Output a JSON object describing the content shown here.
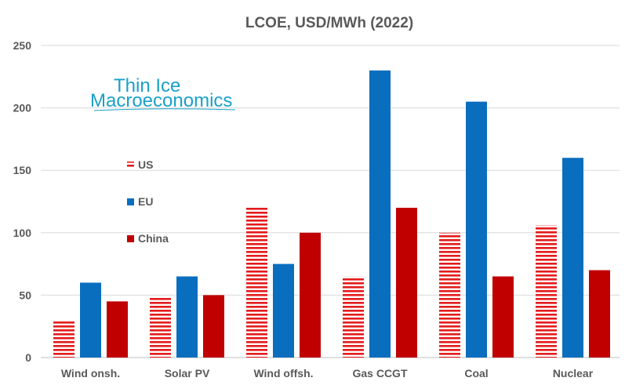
{
  "chart_data": {
    "type": "bar",
    "title": "LCOE, USD/MWh (2022)",
    "xlabel": "",
    "ylabel": "",
    "ylim": [
      0,
      250
    ],
    "yticks": [
      0,
      50,
      100,
      150,
      200,
      250
    ],
    "grid": true,
    "legend_position": "left-center",
    "categories": [
      "Wind onsh.",
      "Solar PV",
      "Wind offsh.",
      "Gas CCGT",
      "Coal",
      "Nuclear"
    ],
    "series": [
      {
        "name": "US",
        "values": [
          30,
          49,
          120,
          65,
          100,
          106
        ],
        "color": "#e41b1b",
        "pattern": "horizontal-stripes"
      },
      {
        "name": "EU",
        "values": [
          60,
          65,
          75,
          230,
          205,
          160
        ],
        "color": "#0a6ebf"
      },
      {
        "name": "China",
        "values": [
          45,
          50,
          100,
          120,
          65,
          70
        ],
        "color": "#c00000"
      }
    ]
  },
  "logo": {
    "line1": "Thin Ice",
    "line2": "Macroeconomics",
    "color": "#1aa0c8"
  }
}
